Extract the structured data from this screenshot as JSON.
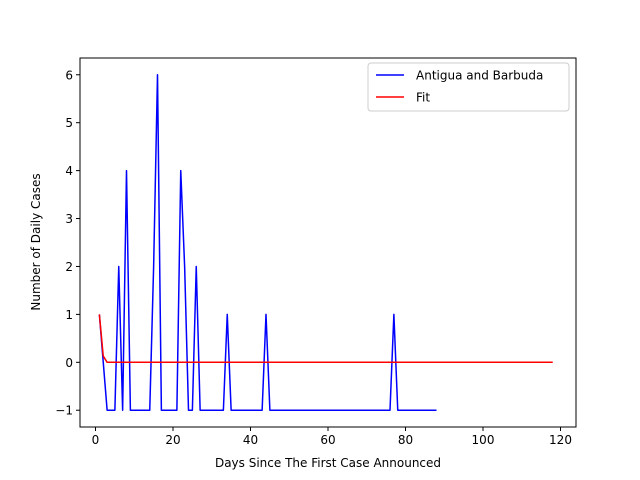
{
  "chart_data": {
    "type": "line",
    "title": "",
    "xlabel": "Days Since The First Case Announced",
    "ylabel": "Number of Daily Cases",
    "xlim": [
      -4,
      124
    ],
    "ylim": [
      -1.35,
      6.35
    ],
    "xticks": [
      0,
      20,
      40,
      60,
      80,
      100,
      120
    ],
    "yticks": [
      -1,
      0,
      1,
      2,
      3,
      4,
      5,
      6
    ],
    "grid": false,
    "legend_position": "top-right",
    "series": [
      {
        "name": "Antigua and Barbuda",
        "color": "#0000ff",
        "x": [
          1,
          2,
          3,
          4,
          5,
          6,
          7,
          8,
          9,
          10,
          11,
          12,
          13,
          14,
          15,
          16,
          17,
          18,
          19,
          20,
          21,
          22,
          23,
          24,
          25,
          26,
          27,
          28,
          29,
          30,
          31,
          32,
          33,
          34,
          35,
          36,
          37,
          38,
          39,
          40,
          41,
          42,
          43,
          44,
          45,
          46,
          47,
          48,
          49,
          50,
          51,
          52,
          53,
          54,
          55,
          56,
          57,
          58,
          59,
          60,
          61,
          62,
          63,
          64,
          65,
          66,
          67,
          68,
          69,
          70,
          71,
          72,
          73,
          74,
          75,
          76,
          77,
          78,
          79,
          80,
          81,
          82,
          83,
          84,
          85,
          86,
          87,
          88
        ],
        "y": [
          1,
          0,
          -1,
          -1,
          -1,
          2,
          -1,
          4,
          -1,
          -1,
          -1,
          -1,
          -1,
          -1,
          2,
          6,
          -1,
          -1,
          -1,
          -1,
          -1,
          4,
          2,
          -1,
          -1,
          2,
          -1,
          -1,
          -1,
          -1,
          -1,
          -1,
          -1,
          1,
          -1,
          -1,
          -1,
          -1,
          -1,
          -1,
          -1,
          -1,
          -1,
          1,
          -1,
          -1,
          -1,
          -1,
          -1,
          -1,
          -1,
          -1,
          -1,
          -1,
          -1,
          -1,
          -1,
          -1,
          -1,
          -1,
          -1,
          -1,
          -1,
          -1,
          -1,
          -1,
          -1,
          -1,
          -1,
          -1,
          -1,
          -1,
          -1,
          -1,
          -1,
          -1,
          1,
          -1,
          -1,
          -1,
          -1,
          -1,
          -1,
          -1,
          -1,
          -1,
          -1,
          -1
        ]
      },
      {
        "name": "Fit",
        "color": "#ff0000",
        "x": [
          1,
          2,
          3,
          10,
          20,
          30,
          40,
          50,
          60,
          70,
          80,
          90,
          100,
          110,
          118
        ],
        "y": [
          1,
          0.13,
          0.0,
          0,
          0,
          0,
          0,
          0,
          0,
          0,
          0,
          0,
          0,
          0,
          0
        ]
      }
    ]
  }
}
